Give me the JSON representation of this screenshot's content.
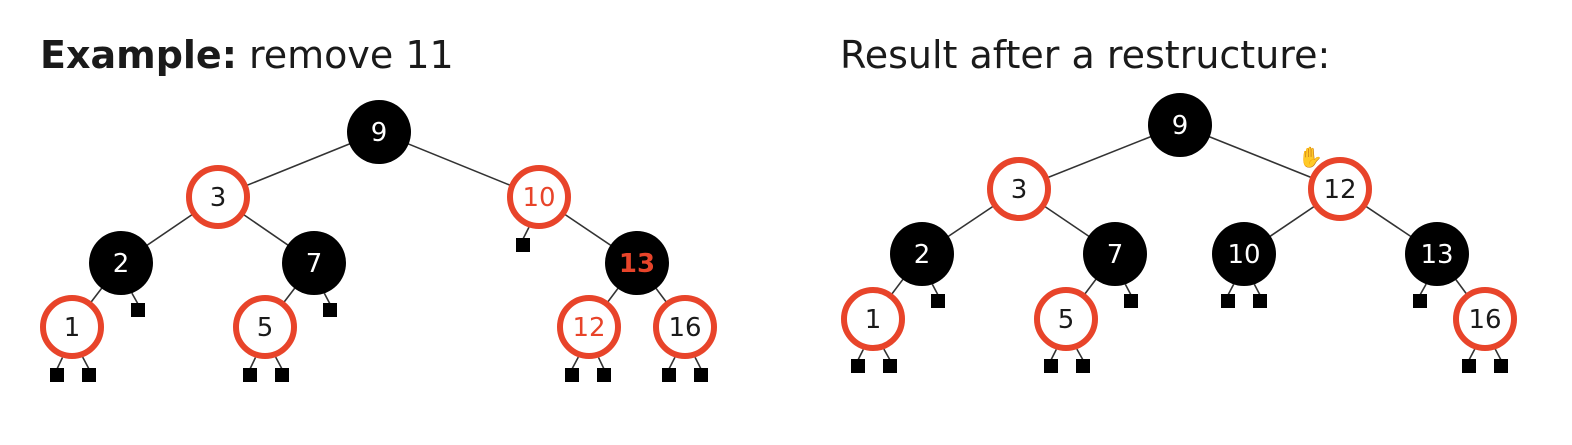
{
  "left": {
    "title_bold": "Example:",
    "title_rest": "remove 11",
    "nodes": [
      {
        "id": "L9",
        "label": "9",
        "style": "black"
      },
      {
        "id": "L3",
        "label": "3",
        "style": "red"
      },
      {
        "id": "L10",
        "label": "10",
        "style": "red",
        "label_color": "#e8442a"
      },
      {
        "id": "L2",
        "label": "2",
        "style": "black"
      },
      {
        "id": "L7",
        "label": "7",
        "style": "black"
      },
      {
        "id": "L13",
        "label": "13",
        "style": "black",
        "label_color": "#e8442a",
        "bold": true
      },
      {
        "id": "L1",
        "label": "1",
        "style": "red"
      },
      {
        "id": "L5",
        "label": "5",
        "style": "red"
      },
      {
        "id": "L12",
        "label": "12",
        "style": "red",
        "label_color": "#e8442a"
      },
      {
        "id": "L16",
        "label": "16",
        "style": "red"
      }
    ]
  },
  "right": {
    "title": "Result after a restructure:",
    "nodes": [
      {
        "id": "R9",
        "label": "9",
        "style": "black"
      },
      {
        "id": "R3",
        "label": "3",
        "style": "red"
      },
      {
        "id": "R12",
        "label": "12",
        "style": "red"
      },
      {
        "id": "R2",
        "label": "2",
        "style": "black"
      },
      {
        "id": "R7",
        "label": "7",
        "style": "black"
      },
      {
        "id": "R10",
        "label": "10",
        "style": "black"
      },
      {
        "id": "R13",
        "label": "13",
        "style": "black"
      },
      {
        "id": "R1",
        "label": "1",
        "style": "red"
      },
      {
        "id": "R5",
        "label": "5",
        "style": "red"
      },
      {
        "id": "R16",
        "label": "16",
        "style": "red"
      }
    ]
  },
  "colors": {
    "red": "#e8442a",
    "black": "#000000",
    "text": "#1a1a1a",
    "edge": "#333333"
  },
  "icons": {
    "cursor": "hand-cursor-icon"
  }
}
